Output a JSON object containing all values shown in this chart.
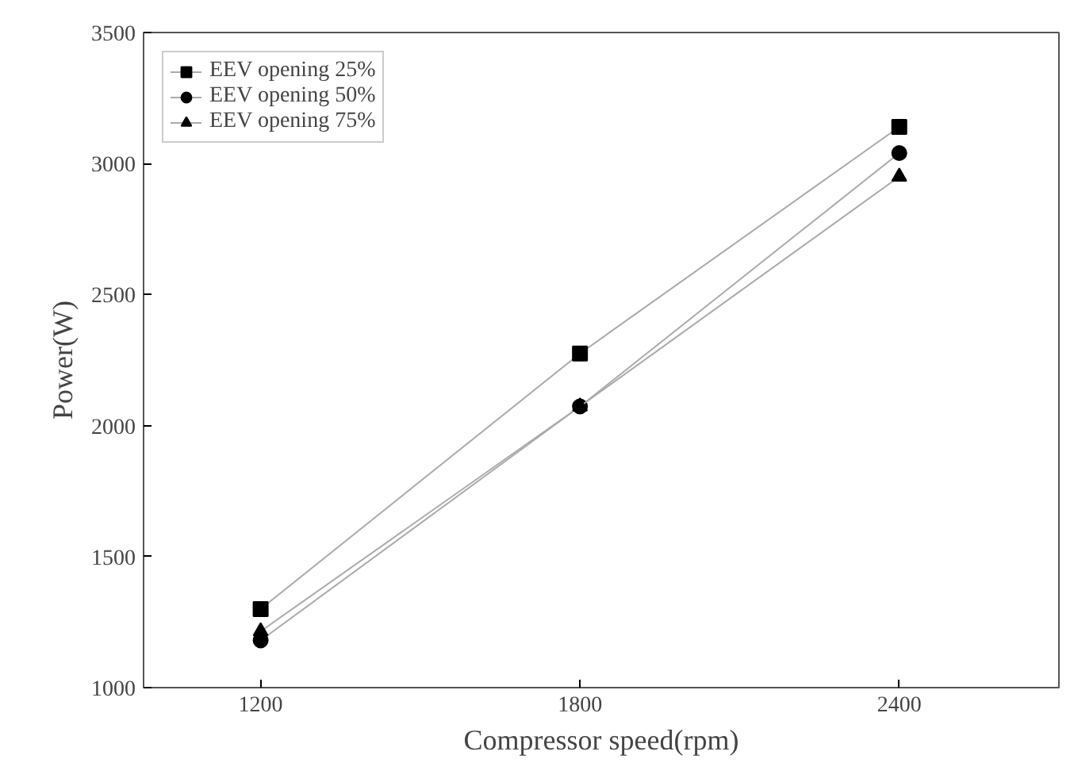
{
  "chart_data": {
    "type": "line",
    "xlabel": "Compressor speed(rpm)",
    "ylabel": "Power(W)",
    "x": [
      1200,
      1800,
      2400
    ],
    "xlim": [
      980,
      2700
    ],
    "xticks": [
      1200,
      1800,
      2400
    ],
    "ylim": [
      1000,
      3500
    ],
    "yticks": [
      1000,
      1500,
      2000,
      2500,
      3000,
      3500
    ],
    "grid": false,
    "legend": "top left",
    "series": [
      {
        "name": "EEV opening 25%",
        "color": "#000000",
        "marker": "square",
        "values": [
          1300,
          2275,
          3140
        ]
      },
      {
        "name": "EEV opening 50%",
        "color": "#000000",
        "marker": "circle",
        "values": [
          1180,
          2073,
          3040
        ]
      },
      {
        "name": "EEV opening 75%",
        "color": "#000000",
        "marker": "triangle",
        "values": [
          1215,
          2073,
          2950
        ]
      }
    ]
  }
}
